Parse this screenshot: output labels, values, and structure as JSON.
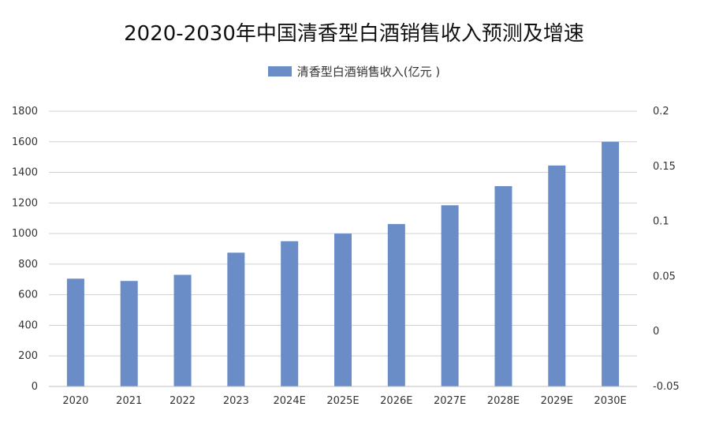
{
  "chart_data": {
    "type": "bar",
    "title": "2020-2030年中国清香型白酒销售收入预测及增速",
    "categories": [
      "2020",
      "2021",
      "2022",
      "2023",
      "2024E",
      "2025E",
      "2026E",
      "2027E",
      "2028E",
      "2029E",
      "2030E"
    ],
    "series": [
      {
        "name": "清香型白酒销售收入(亿元 )",
        "color": "#6a8cc7",
        "values": [
          705,
          690,
          730,
          875,
          950,
          1000,
          1062,
          1185,
          1310,
          1445,
          1600
        ]
      }
    ],
    "ylim": [
      0,
      1800
    ],
    "yticks": [
      "0",
      "200",
      "400",
      "600",
      "800",
      "1000",
      "1200",
      "1400",
      "1600",
      "1800"
    ],
    "y2lim": [
      -0.05,
      0.2
    ],
    "y2ticks": [
      "-0.05",
      "0",
      "0.05",
      "0.1",
      "0.15",
      "0.2"
    ],
    "grid": true,
    "legend_position": "top-center"
  }
}
